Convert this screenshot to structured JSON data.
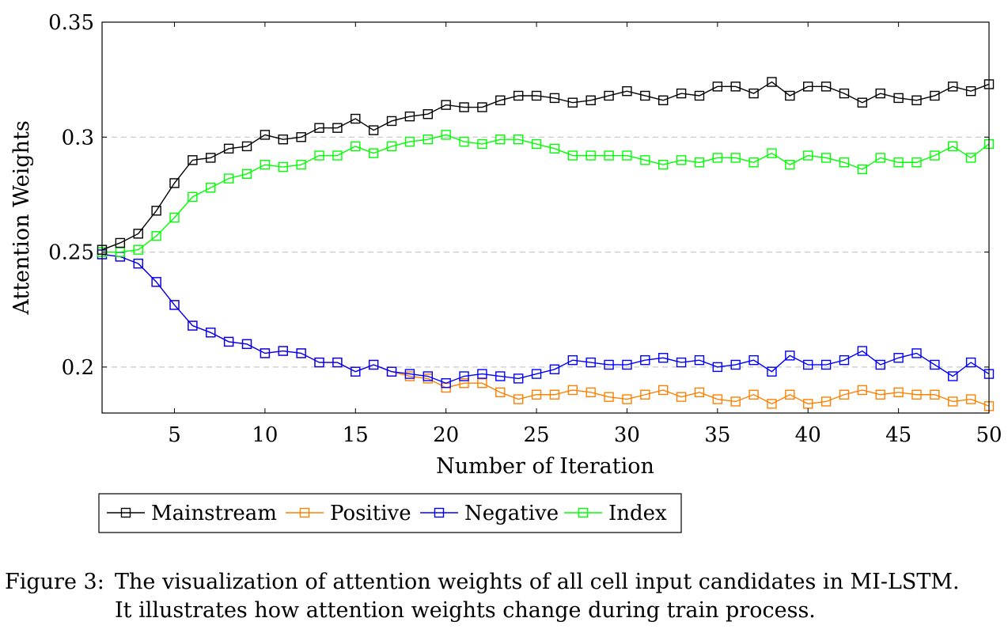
{
  "chart_data": {
    "type": "line",
    "xlabel": "Number of Iteration",
    "ylabel": "Attention Weights",
    "xlim": [
      1,
      50
    ],
    "ylim": [
      0.18,
      0.35
    ],
    "xticks": [
      5,
      10,
      15,
      20,
      25,
      30,
      35,
      40,
      45,
      50
    ],
    "yticks": [
      0.2,
      0.25,
      0.3,
      0.35
    ],
    "ytick_labels": [
      "0.2",
      "0.25",
      "0.3",
      "0.35"
    ],
    "grid": "horizontal dashed",
    "legend_position": "bottom",
    "marker": "square",
    "x": [
      1,
      2,
      3,
      4,
      5,
      6,
      7,
      8,
      9,
      10,
      11,
      12,
      13,
      14,
      15,
      16,
      17,
      18,
      19,
      20,
      21,
      22,
      23,
      24,
      25,
      26,
      27,
      28,
      29,
      30,
      31,
      32,
      33,
      34,
      35,
      36,
      37,
      38,
      39,
      40,
      41,
      42,
      43,
      44,
      45,
      46,
      47,
      48,
      49,
      50
    ],
    "series": [
      {
        "name": "Mainstream",
        "color": "#000000",
        "values": [
          0.251,
          0.254,
          0.258,
          0.268,
          0.28,
          0.29,
          0.291,
          0.295,
          0.296,
          0.301,
          0.299,
          0.3,
          0.304,
          0.304,
          0.308,
          0.303,
          0.307,
          0.309,
          0.31,
          0.314,
          0.313,
          0.313,
          0.316,
          0.318,
          0.318,
          0.317,
          0.315,
          0.316,
          0.318,
          0.32,
          0.318,
          0.316,
          0.319,
          0.318,
          0.322,
          0.322,
          0.319,
          0.324,
          0.318,
          0.322,
          0.322,
          0.319,
          0.315,
          0.319,
          0.317,
          0.316,
          0.318,
          0.322,
          0.32,
          0.323
        ]
      },
      {
        "name": "Positive",
        "color": "#ff8000",
        "values": [
          0.249,
          0.248,
          0.245,
          0.237,
          0.227,
          0.218,
          0.215,
          0.211,
          0.21,
          0.206,
          0.207,
          0.206,
          0.202,
          0.202,
          0.198,
          0.201,
          0.198,
          0.196,
          0.195,
          0.191,
          0.193,
          0.193,
          0.189,
          0.186,
          0.188,
          0.188,
          0.19,
          0.189,
          0.187,
          0.186,
          0.188,
          0.19,
          0.187,
          0.189,
          0.186,
          0.185,
          0.188,
          0.184,
          0.188,
          0.184,
          0.185,
          0.188,
          0.19,
          0.188,
          0.189,
          0.188,
          0.188,
          0.185,
          0.186,
          0.183
        ]
      },
      {
        "name": "Negative",
        "color": "#0000ff",
        "values": [
          0.249,
          0.248,
          0.245,
          0.237,
          0.227,
          0.218,
          0.215,
          0.211,
          0.21,
          0.206,
          0.207,
          0.206,
          0.202,
          0.202,
          0.198,
          0.201,
          0.198,
          0.197,
          0.196,
          0.193,
          0.196,
          0.197,
          0.196,
          0.195,
          0.197,
          0.199,
          0.203,
          0.202,
          0.201,
          0.201,
          0.203,
          0.204,
          0.202,
          0.203,
          0.2,
          0.201,
          0.203,
          0.198,
          0.205,
          0.201,
          0.201,
          0.203,
          0.207,
          0.201,
          0.204,
          0.206,
          0.201,
          0.196,
          0.202,
          0.197
        ]
      },
      {
        "name": "Index",
        "color": "#00ff00",
        "values": [
          0.25,
          0.25,
          0.251,
          0.257,
          0.265,
          0.274,
          0.278,
          0.282,
          0.284,
          0.288,
          0.287,
          0.288,
          0.292,
          0.292,
          0.296,
          0.293,
          0.296,
          0.298,
          0.299,
          0.301,
          0.298,
          0.297,
          0.299,
          0.299,
          0.297,
          0.295,
          0.292,
          0.292,
          0.292,
          0.292,
          0.29,
          0.288,
          0.29,
          0.289,
          0.291,
          0.291,
          0.289,
          0.293,
          0.288,
          0.292,
          0.291,
          0.289,
          0.286,
          0.291,
          0.289,
          0.289,
          0.292,
          0.296,
          0.291,
          0.297
        ]
      }
    ]
  },
  "caption": {
    "label": "Figure 3:",
    "line1": "The visualization of attention weights of all cell input candidates in MI-LSTM.",
    "line2": "It illustrates how attention weights change during train process."
  }
}
